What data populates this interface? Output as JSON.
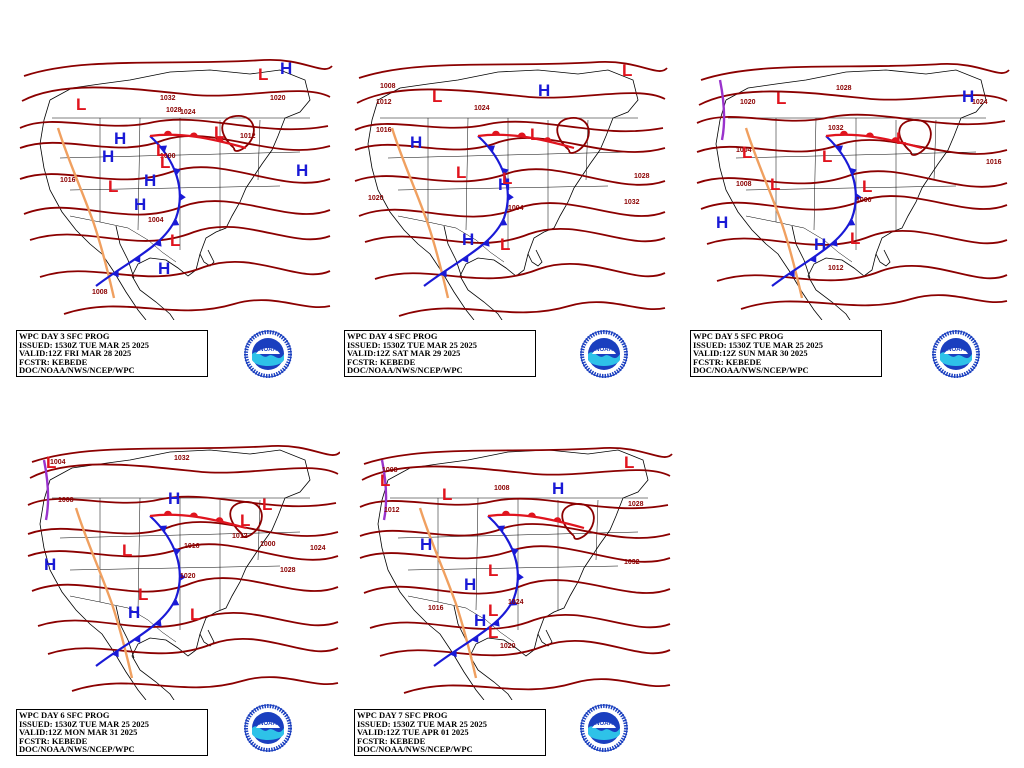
{
  "panels": [
    {
      "lines": [
        "WPC DAY 3 SFC PROG",
        "ISSUED: 1530Z TUE MAR 25 2025",
        "VALID:12Z FRI MAR 28 2025",
        "FCSTR: KEBEDE",
        "DOC/NOAA/NWS/NCEP/WPC"
      ],
      "isobar_labels": [
        "1032",
        "1028",
        "1024",
        "1020",
        "1016",
        "1012",
        "1008",
        "1004",
        "1000"
      ],
      "highs": 7,
      "lows": 7
    },
    {
      "lines": [
        "WPC DAY 4 SFC PROG",
        "ISSUED: 1530Z TUE MAR 25 2025",
        "VALID:12Z SAT MAR 29 2025",
        "FCSTR: KEBEDE",
        "DOC/NOAA/NWS/NCEP/WPC"
      ],
      "isobar_labels": [
        "1008",
        "1012",
        "1016",
        "1020",
        "1024",
        "1028",
        "1032",
        "1004"
      ],
      "highs": 4,
      "lows": 6
    },
    {
      "lines": [
        "WPC DAY 5 SFC PROG",
        "ISSUED: 1530Z TUE MAR 25 2025",
        "VALID:12Z SUN MAR 30 2025",
        "FCSTR: KEBEDE",
        "DOC/NOAA/NWS/NCEP/WPC"
      ],
      "isobar_labels": [
        "1020",
        "1004",
        "1008",
        "1012",
        "1016",
        "1024",
        "1028",
        "1032",
        "1000"
      ],
      "highs": 3,
      "lows": 7
    },
    {
      "lines": [
        "WPC DAY 6 SFC PROG",
        "ISSUED: 1530Z TUE MAR 25 2025",
        "VALID:12Z MON MAR 31 2025",
        "FCSTR: KEBEDE",
        "DOC/NOAA/NWS/NCEP/WPC"
      ],
      "isobar_labels": [
        "1004",
        "1008",
        "1012",
        "1016",
        "1020",
        "1024",
        "1028",
        "1032",
        "1000"
      ],
      "highs": 3,
      "lows": 6
    },
    {
      "lines": [
        "WPC DAY 7 SFC PROG",
        "ISSUED: 1530Z TUE MAR 25 2025",
        "VALID:12Z TUE APR 01 2025",
        "FCSTR: KEBEDE",
        "DOC/NOAA/NWS/NCEP/WPC"
      ],
      "isobar_labels": [
        "1008",
        "1012",
        "1016",
        "1020",
        "1024",
        "1028",
        "1032"
      ],
      "highs": 4,
      "lows": 7
    }
  ],
  "pressure_symbols": {
    "high": "H",
    "low": "L"
  },
  "logo_text": "NOAA",
  "colors": {
    "isobar": "#8b0000",
    "high": "#1a1ad6",
    "low": "#e0141e",
    "cold_front": "#1a1ad6",
    "warm_front": "#e0141e",
    "trough": "#f0a060",
    "occluded": "#9a33cc",
    "coast": "#000000"
  }
}
